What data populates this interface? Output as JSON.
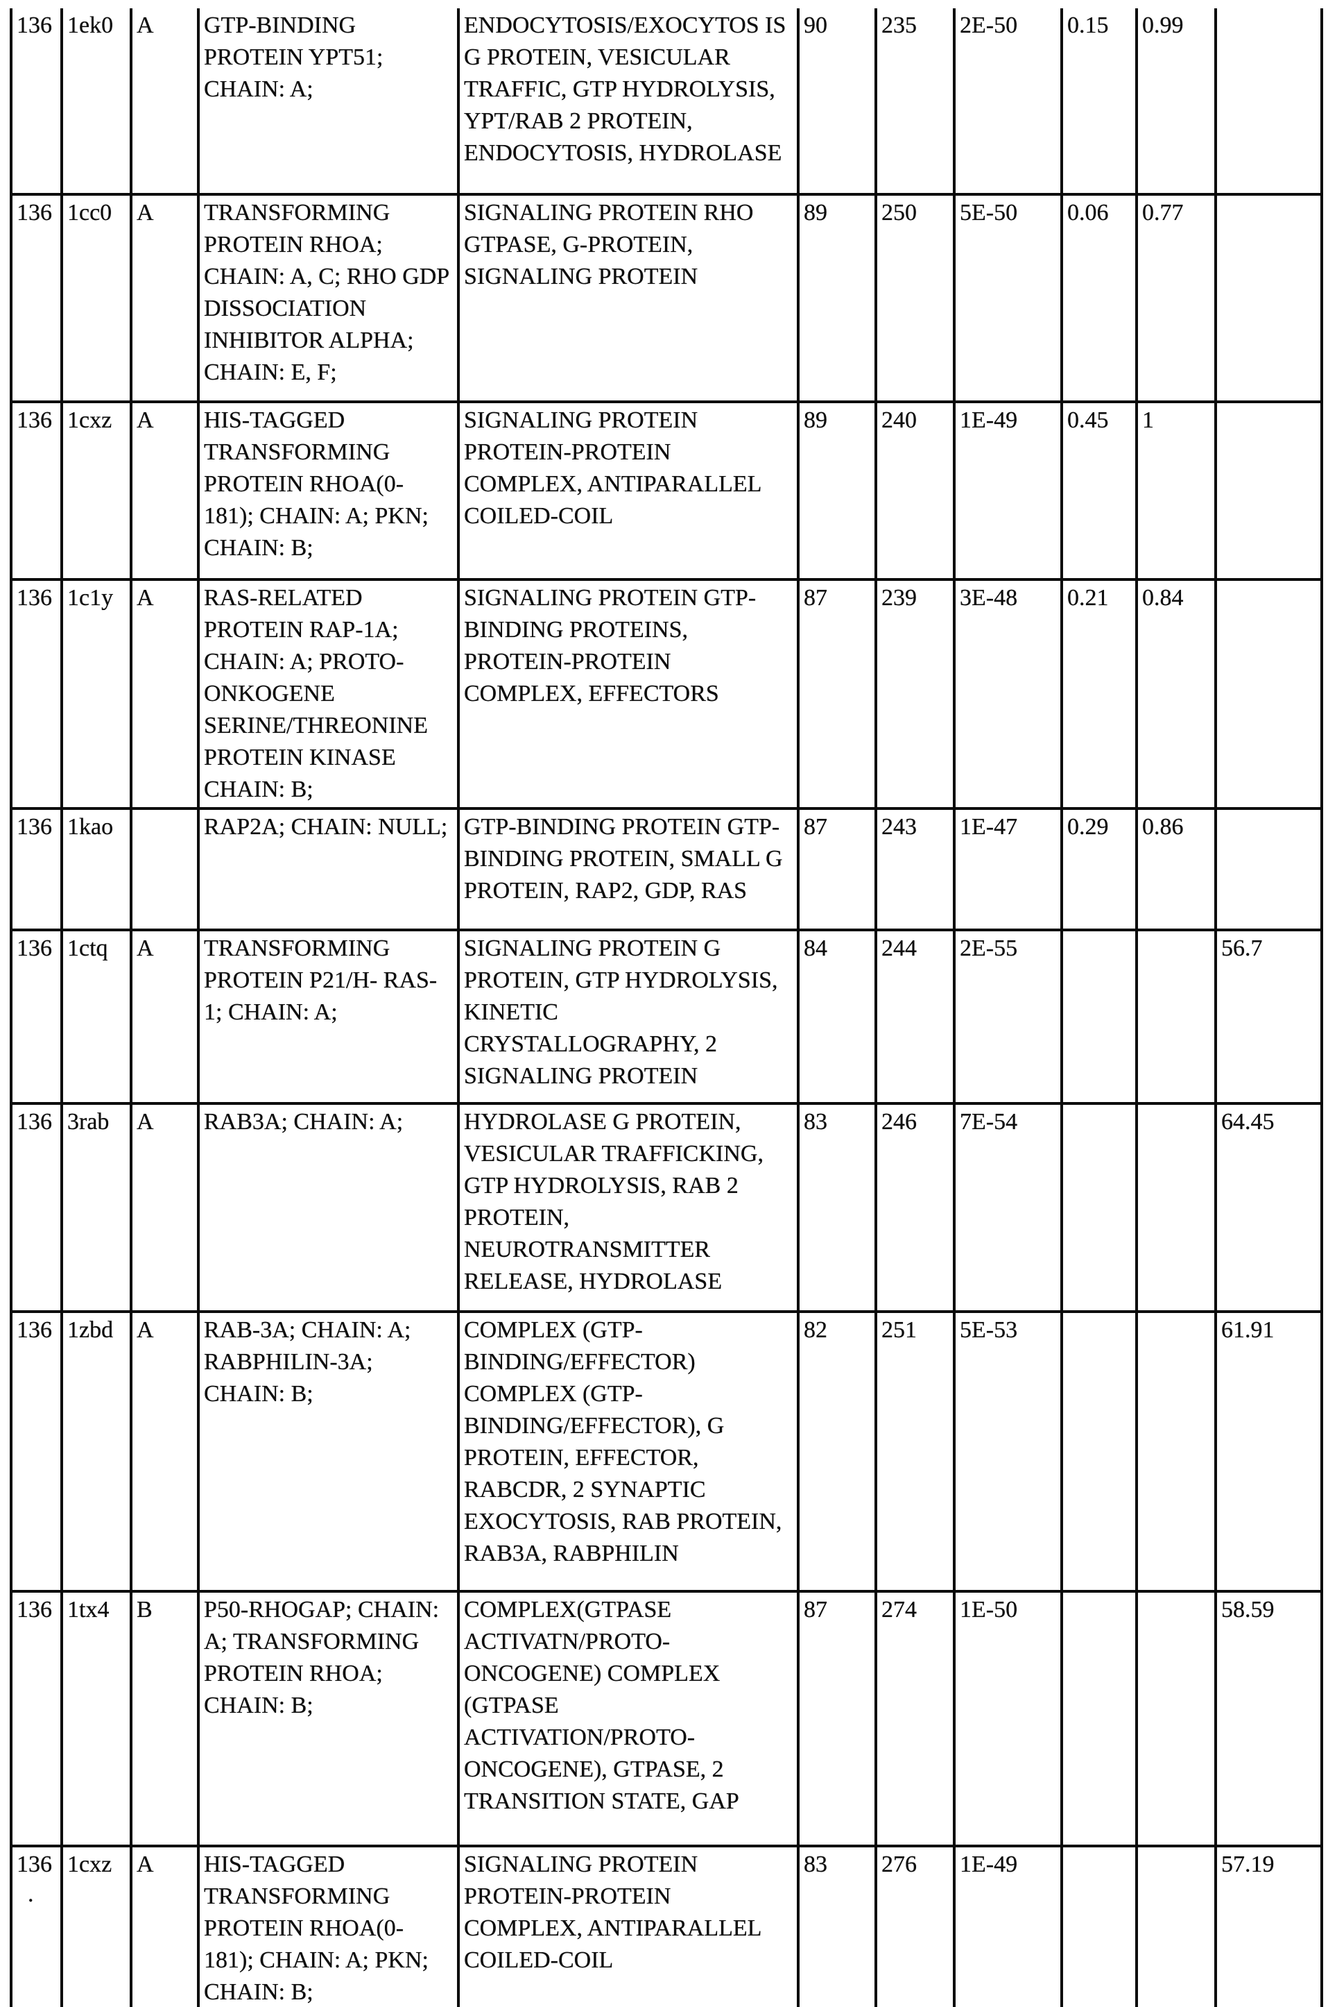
{
  "table": {
    "rows": [
      {
        "id": "136",
        "id_dot": "",
        "pdb": "1ek0",
        "chain": "A",
        "name": "GTP-BINDING PROTEIN YPT51; CHAIN: A;",
        "keywords": "ENDOCYTOSIS/EXOCYTOS IS G PROTEIN, VESICULAR TRAFFIC, GTP HYDROLYSIS, YPT/RAB 2 PROTEIN, ENDOCYTOSIS, HYDROLASE",
        "num1": "90",
        "num2": "235",
        "evalue": "2E-50",
        "num3": "0.15",
        "num4": "0.99",
        "num5": ""
      },
      {
        "id": "136",
        "id_dot": "",
        "pdb": "1cc0",
        "chain": "A",
        "name": "TRANSFORMING PROTEIN RHOA; CHAIN: A, C; RHO GDP DISSOCIATION INHIBITOR ALPHA; CHAIN: E, F;",
        "keywords": "SIGNALING PROTEIN RHO GTPASE, G-PROTEIN, SIGNALING PROTEIN",
        "num1": "89",
        "num2": "250",
        "evalue": "5E-50",
        "num3": "0.06",
        "num4": "0.77",
        "num5": ""
      },
      {
        "id": "136",
        "id_dot": "",
        "pdb": "1cxz",
        "chain": "A",
        "name": "HIS-TAGGED TRANSFORMING PROTEIN RHOA(0- 181); CHAIN: A; PKN; CHAIN: B;",
        "keywords": "SIGNALING PROTEIN PROTEIN-PROTEIN COMPLEX, ANTIPARALLEL COILED-COIL",
        "num1": "89",
        "num2": "240",
        "evalue": "1E-49",
        "num3": "0.45",
        "num4": "1",
        "num5": ""
      },
      {
        "id": "136",
        "id_dot": "",
        "pdb": "1c1y",
        "chain": "A",
        "name": "RAS-RELATED PROTEIN RAP-1A; CHAIN: A; PROTO- ONKOGENE SERINE/THREONINE PROTEIN KINASE CHAIN: B;",
        "keywords": "SIGNALING PROTEIN GTP- BINDING PROTEINS, PROTEIN-PROTEIN COMPLEX, EFFECTORS",
        "num1": "87",
        "num2": "239",
        "evalue": "3E-48",
        "num3": "0.21",
        "num4": "0.84",
        "num5": ""
      },
      {
        "id": "136",
        "id_dot": "",
        "pdb": "1kao",
        "chain": "",
        "name": "RAP2A; CHAIN: NULL;",
        "keywords": "GTP-BINDING PROTEIN GTP-BINDING PROTEIN, SMALL G PROTEIN, RAP2, GDP, RAS",
        "num1": "87",
        "num2": "243",
        "evalue": "1E-47",
        "num3": "0.29",
        "num4": "0.86",
        "num5": ""
      },
      {
        "id": "136",
        "id_dot": "",
        "pdb": "1ctq",
        "chain": "A",
        "name": "TRANSFORMING PROTEIN P21/H- RAS-1; CHAIN: A;",
        "keywords": "SIGNALING PROTEIN G PROTEIN, GTP HYDROLYSIS, KINETIC CRYSTALLOGRAPHY, 2 SIGNALING PROTEIN",
        "num1": "84",
        "num2": "244",
        "evalue": "2E-55",
        "num3": "",
        "num4": "",
        "num5": "56.7"
      },
      {
        "id": "136",
        "id_dot": "",
        "pdb": "3rab",
        "chain": "A",
        "name": "RAB3A; CHAIN: A;",
        "keywords": "HYDROLASE G PROTEIN, VESICULAR TRAFFICKING, GTP HYDROLYSIS, RAB 2 PROTEIN, NEUROTRANSMITTER RELEASE, HYDROLASE",
        "num1": "83",
        "num2": "246",
        "evalue": "7E-54",
        "num3": "",
        "num4": "",
        "num5": "64.45"
      },
      {
        "id": "136",
        "id_dot": "",
        "pdb": "1zbd",
        "chain": "A",
        "name": "RAB-3A; CHAIN: A; RABPHILIN-3A; CHAIN: B;",
        "keywords": "COMPLEX (GTP- BINDING/EFFECTOR) COMPLEX (GTP- BINDING/EFFECTOR), G PROTEIN, EFFECTOR, RABCDR, 2 SYNAPTIC EXOCYTOSIS, RAB PROTEIN, RAB3A, RABPHILIN",
        "num1": "82",
        "num2": "251",
        "evalue": "5E-53",
        "num3": "",
        "num4": "",
        "num5": "61.91"
      },
      {
        "id": "136",
        "id_dot": "",
        "pdb": "1tx4",
        "chain": "B",
        "name": "P50-RHOGAP; CHAIN: A; TRANSFORMING PROTEIN RHOA; CHAIN: B;",
        "keywords": "COMPLEX(GTPASE ACTIVATN/PROTO- ONCOGENE) COMPLEX (GTPASE ACTIVATION/PROTO- ONCOGENE), GTPASE, 2 TRANSITION STATE, GAP",
        "num1": "87",
        "num2": "274",
        "evalue": "1E-50",
        "num3": "",
        "num4": "",
        "num5": "58.59"
      },
      {
        "id": "136",
        "id_dot": ".",
        "pdb": "1cxz",
        "chain": "A",
        "name": "HIS-TAGGED TRANSFORMING PROTEIN RHOA(0- 181); CHAIN: A; PKN; CHAIN: B;",
        "keywords": "SIGNALING PROTEIN PROTEIN-PROTEIN COMPLEX, ANTIPARALLEL COILED-COIL",
        "num1": "83",
        "num2": "276",
        "evalue": "1E-49",
        "num3": "",
        "num4": "",
        "num5": "57.19"
      }
    ]
  }
}
